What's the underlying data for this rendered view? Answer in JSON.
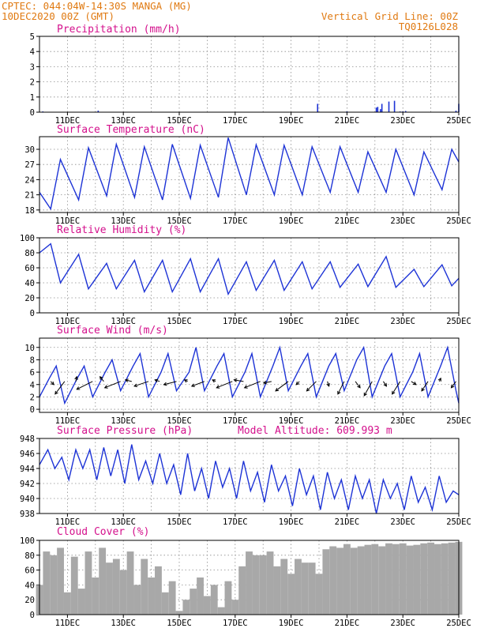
{
  "header": {
    "left_line1": "CPTEC:   044:04W-14:30S   MANGA (MG)",
    "left_line2": "10DEC2020 00Z (GMT)",
    "right_line1": "Vertical Grid Line: 00Z",
    "right_line2": "TQ0126L028"
  },
  "colors": {
    "header_text": "#e07a12",
    "title_text": "#d4108c",
    "series_line": "#1d33d6",
    "cloud_fill": "#a8a8a8",
    "grid": "#8c8c8c"
  },
  "x_ticks": [
    "11DEC",
    "13DEC",
    "15DEC",
    "17DEC",
    "19DEC",
    "21DEC",
    "23DEC",
    "25DEC"
  ],
  "chart_data": [
    {
      "type": "bar",
      "title": "Precipitation (mm/h)",
      "x_unit": "days since 10DEC2020 00Z",
      "ylim": [
        0,
        5
      ],
      "yticks": [
        0,
        1,
        2,
        3,
        4,
        5
      ],
      "grid": true,
      "x": [
        0.12,
        2.1,
        9.95,
        11.0,
        12.05,
        12.1,
        12.2,
        12.25,
        12.5,
        12.7,
        12.9,
        13.0,
        13.1,
        14.9,
        15.0
      ],
      "values": [
        0.05,
        0.1,
        0.55,
        0.05,
        0.3,
        0.35,
        0.2,
        0.55,
        0.7,
        0.75,
        0.05,
        0.05,
        0.08,
        0.1,
        0.55
      ]
    },
    {
      "type": "line",
      "title": "Surface Temperature (nC)",
      "x_unit": "days since 10DEC2020 00Z",
      "ylim": [
        17.5,
        32.5
      ],
      "yticks": [
        18,
        21,
        24,
        27,
        30
      ],
      "grid": true,
      "x": [
        0,
        0.4,
        0.75,
        1.4,
        1.75,
        2.4,
        2.75,
        3.4,
        3.75,
        4.4,
        4.75,
        5.4,
        5.75,
        6.4,
        6.75,
        7.4,
        7.75,
        8.4,
        8.75,
        9.4,
        9.75,
        10.4,
        10.75,
        11.4,
        11.75,
        12.4,
        12.75,
        13.4,
        13.75,
        14.4,
        14.75,
        15
      ],
      "values": [
        21.5,
        18.2,
        28.0,
        20.0,
        30.3,
        20.8,
        31.0,
        20.5,
        30.5,
        20.0,
        31.0,
        20.3,
        30.8,
        20.5,
        32.3,
        21.0,
        30.9,
        21.0,
        30.8,
        21.0,
        30.5,
        21.5,
        30.5,
        21.5,
        29.5,
        21.5,
        30.0,
        21.0,
        29.5,
        22.0,
        30.0,
        27.5
      ]
    },
    {
      "type": "line",
      "title": "Relative Humidity (%)",
      "x_unit": "days since 10DEC2020 00Z",
      "ylim": [
        0,
        100
      ],
      "yticks": [
        0,
        20,
        40,
        60,
        80,
        100
      ],
      "grid": true,
      "x": [
        0,
        0.4,
        0.75,
        1.4,
        1.75,
        2.4,
        2.75,
        3.4,
        3.75,
        4.4,
        4.75,
        5.4,
        5.75,
        6.4,
        6.75,
        7.4,
        7.75,
        8.4,
        8.75,
        9.4,
        9.75,
        10.4,
        10.75,
        11.4,
        11.75,
        12.4,
        12.75,
        13.4,
        13.75,
        14.4,
        14.75,
        15
      ],
      "values": [
        80,
        92,
        40,
        78,
        32,
        66,
        32,
        70,
        28,
        70,
        28,
        72,
        28,
        72,
        25,
        68,
        30,
        70,
        30,
        68,
        32,
        68,
        34,
        65,
        35,
        75,
        34,
        58,
        35,
        64,
        36,
        46
      ]
    },
    {
      "type": "line",
      "title": "Surface Wind (m/s)",
      "x_unit": "days since 10DEC2020 00Z",
      "ylim": [
        -0.5,
        11.5
      ],
      "yticks": [
        0,
        2,
        4,
        6,
        8,
        10
      ],
      "grid": true,
      "x": [
        0,
        0.35,
        0.6,
        0.9,
        1.35,
        1.6,
        1.9,
        2.35,
        2.6,
        2.9,
        3.35,
        3.6,
        3.9,
        4.35,
        4.6,
        4.9,
        5.35,
        5.6,
        5.9,
        6.35,
        6.6,
        6.9,
        7.35,
        7.6,
        7.9,
        8.35,
        8.6,
        8.9,
        9.35,
        9.6,
        9.9,
        10.35,
        10.6,
        10.9,
        11.35,
        11.6,
        11.9,
        12.35,
        12.6,
        12.9,
        13.35,
        13.6,
        13.9,
        14.35,
        14.6,
        14.9,
        15
      ],
      "values": [
        2,
        5,
        7,
        1,
        5,
        7,
        2,
        6,
        8,
        3,
        7,
        9,
        2,
        6,
        9,
        3,
        6,
        10,
        3,
        7,
        9,
        2,
        6,
        9,
        2,
        7,
        10,
        3,
        7,
        9,
        2,
        7,
        9,
        3,
        8,
        10,
        2,
        7,
        9,
        2,
        6,
        9,
        2,
        7,
        10,
        3,
        1
      ],
      "arrows": {
        "x": [
          0.4,
          0.9,
          1.3,
          1.9,
          2.3,
          2.9,
          3.3,
          3.9,
          4.3,
          4.9,
          5.3,
          5.9,
          6.3,
          6.9,
          7.3,
          7.9,
          8.3,
          8.9,
          9.3,
          9.9,
          10.3,
          10.9,
          11.3,
          11.9,
          12.3,
          12.9,
          13.3,
          13.9,
          14.3,
          14.9
        ],
        "u": [
          1.0,
          -3.0,
          0.3,
          -5.0,
          -1.2,
          -5.0,
          -2.0,
          -4.5,
          -1.5,
          -4.0,
          -1.0,
          -4.0,
          -1.0,
          -5.0,
          -3.0,
          -5.0,
          -2.5,
          -4.0,
          -1.0,
          -3.0,
          0.5,
          -2.0,
          1.5,
          -2.5,
          1.0,
          -2.5,
          1.5,
          -2.0,
          0.5,
          -1.5
        ],
        "v": [
          -1.0,
          -4.0,
          1.5,
          -2.5,
          1.5,
          -2.0,
          0.5,
          -1.5,
          0.5,
          -1.0,
          0.5,
          -1.5,
          0.5,
          -2.0,
          0.5,
          -2.0,
          -0.5,
          -3.0,
          -1.0,
          -3.0,
          -1.5,
          -4.0,
          -2.0,
          -4.5,
          -1.5,
          -4.0,
          -1.0,
          -3.0,
          1.0,
          -2.0
        ]
      }
    },
    {
      "type": "line",
      "title": "Surface Pressure (hPa)",
      "annotation": "Model Altitude: 609.993 m",
      "x_unit": "days since 10DEC2020 00Z",
      "ylim": [
        938,
        948
      ],
      "yticks": [
        938,
        940,
        942,
        944,
        946,
        948
      ],
      "grid": true,
      "x": [
        0,
        0.3,
        0.55,
        0.8,
        1.05,
        1.3,
        1.55,
        1.8,
        2.05,
        2.3,
        2.55,
        2.8,
        3.05,
        3.3,
        3.55,
        3.8,
        4.05,
        4.3,
        4.55,
        4.8,
        5.05,
        5.3,
        5.55,
        5.8,
        6.05,
        6.3,
        6.55,
        6.8,
        7.05,
        7.3,
        7.55,
        7.8,
        8.05,
        8.3,
        8.55,
        8.8,
        9.05,
        9.3,
        9.55,
        9.8,
        10.05,
        10.3,
        10.55,
        10.8,
        11.05,
        11.3,
        11.55,
        11.8,
        12.05,
        12.3,
        12.55,
        12.8,
        13.05,
        13.3,
        13.55,
        13.8,
        14.05,
        14.3,
        14.55,
        14.8,
        15
      ],
      "values": [
        944.5,
        946.5,
        944.0,
        945.5,
        942.5,
        946.5,
        944.0,
        946.5,
        942.5,
        946.8,
        943.0,
        946.5,
        942.0,
        947.2,
        942.5,
        945.0,
        942.0,
        946.0,
        942.0,
        944.5,
        940.5,
        946.0,
        941.0,
        944.0,
        940.0,
        945.0,
        941.5,
        944.0,
        940.0,
        945.0,
        941.0,
        943.5,
        939.5,
        944.5,
        941.0,
        943.0,
        939.0,
        944.0,
        940.5,
        943.0,
        938.5,
        943.5,
        940.0,
        942.5,
        938.5,
        943.0,
        940.0,
        942.5,
        938.0,
        942.5,
        940.0,
        942.0,
        938.5,
        943.0,
        939.5,
        941.5,
        938.5,
        943.0,
        939.5,
        941.0,
        940.5
      ]
    },
    {
      "type": "area",
      "title": "Cloud Cover (%)",
      "x_unit": "days since 10DEC2020 00Z",
      "ylim": [
        0,
        100
      ],
      "yticks": [
        0,
        20,
        40,
        60,
        80,
        100
      ],
      "grid": true,
      "x": [
        0,
        0.25,
        0.5,
        0.75,
        1.0,
        1.25,
        1.5,
        1.75,
        2.0,
        2.25,
        2.5,
        2.75,
        3.0,
        3.25,
        3.5,
        3.75,
        4.0,
        4.25,
        4.5,
        4.75,
        5.0,
        5.25,
        5.5,
        5.75,
        6.0,
        6.25,
        6.5,
        6.75,
        7.0,
        7.25,
        7.5,
        7.75,
        8.0,
        8.25,
        8.5,
        8.75,
        9.0,
        9.25,
        9.5,
        9.75,
        10.0,
        10.25,
        10.5,
        10.75,
        11.0,
        11.25,
        11.5,
        11.75,
        12.0,
        12.25,
        12.5,
        12.75,
        13.0,
        13.25,
        13.5,
        13.75,
        14.0,
        14.25,
        14.5,
        14.75,
        15.0
      ],
      "values": [
        40,
        85,
        80,
        90,
        30,
        78,
        35,
        85,
        50,
        90,
        70,
        75,
        60,
        85,
        40,
        75,
        50,
        65,
        30,
        45,
        5,
        20,
        35,
        50,
        25,
        40,
        10,
        45,
        20,
        65,
        85,
        80,
        80,
        85,
        65,
        75,
        55,
        75,
        70,
        70,
        55,
        88,
        92,
        90,
        95,
        90,
        92,
        94,
        95,
        92,
        96,
        95,
        96,
        93,
        94,
        96,
        97,
        95,
        96,
        97,
        98
      ]
    }
  ]
}
